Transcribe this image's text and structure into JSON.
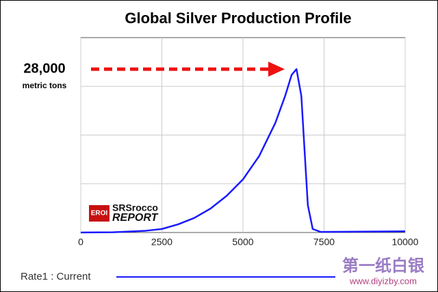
{
  "chart_data": {
    "type": "line",
    "title": "Global Silver Production Profile",
    "x": [
      0,
      1000,
      2000,
      2500,
      3000,
      3500,
      4000,
      4500,
      5000,
      5500,
      6000,
      6300,
      6500,
      6650,
      6800,
      6900,
      7000,
      7150,
      7400,
      10000
    ],
    "series": [
      {
        "name": "Rate1 : Current",
        "color": "#1a1aff",
        "values": [
          0,
          50,
          300,
          600,
          1400,
          2500,
          4100,
          6300,
          9100,
          13100,
          18800,
          23400,
          27000,
          28000,
          23400,
          14000,
          4700,
          600,
          100,
          200
        ]
      }
    ],
    "xlim": [
      0,
      10000
    ],
    "xticks": [
      0,
      2500,
      5000,
      7500,
      10000
    ],
    "ylim": [
      0,
      33400
    ],
    "grid": true,
    "annotation": {
      "value": 28000,
      "label": "28,000",
      "unit": "metric tons",
      "color": "#ee1111"
    },
    "logo": {
      "badge": "EROI",
      "line1": "SRSrocco",
      "line2": "REPORT"
    },
    "watermark": {
      "text": "第一纸白银",
      "url": "www.diyizby.com"
    }
  }
}
